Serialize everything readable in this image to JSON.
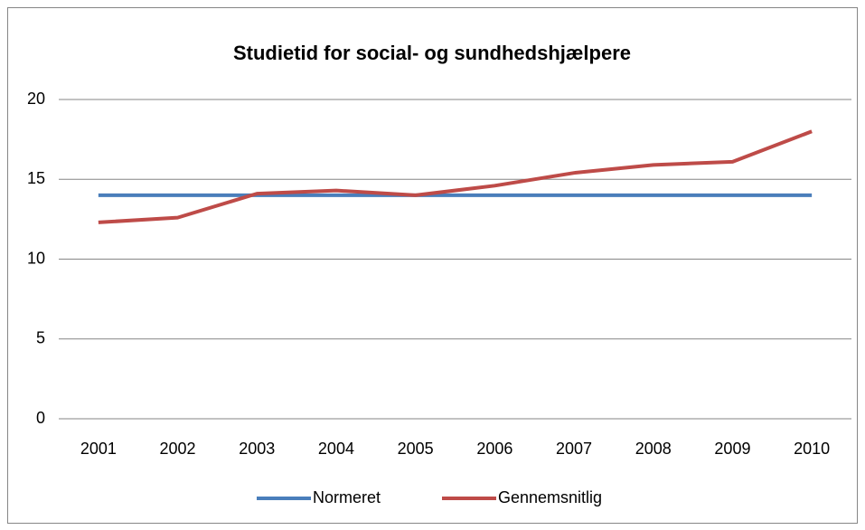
{
  "chart_data": {
    "type": "line",
    "title": "Studietid for social- og sundhedshjælpere",
    "categories": [
      "2001",
      "2002",
      "2003",
      "2004",
      "2005",
      "2006",
      "2007",
      "2008",
      "2009",
      "2010"
    ],
    "series": [
      {
        "name": "Normeret",
        "color": "#4a7ebb",
        "values": [
          14,
          14,
          14,
          14,
          14,
          14,
          14,
          14,
          14,
          14
        ]
      },
      {
        "name": "Gennemsnitlig",
        "color": "#be4b48",
        "values": [
          12.3,
          12.6,
          14.1,
          14.3,
          14.0,
          14.6,
          15.4,
          15.9,
          16.1,
          18.0
        ]
      }
    ],
    "ylim": [
      0,
      20
    ],
    "yticks": [
      0,
      5,
      10,
      15,
      20
    ],
    "grid": true,
    "legend": "bottom"
  }
}
